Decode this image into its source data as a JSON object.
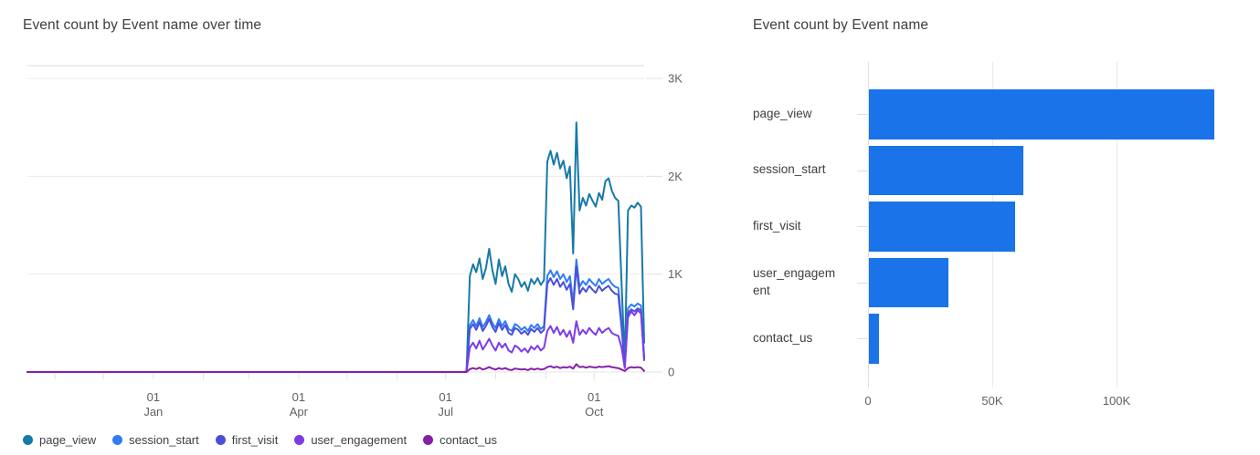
{
  "accent_colors": {
    "bar_blue": "#1a73e8",
    "grid_light": "#e9e9e9",
    "grid_border": "#dadce0",
    "axis_text": "#616161",
    "title_text": "#3c4043"
  },
  "chart_data": [
    {
      "type": "line",
      "title": "Event count by Event name over time",
      "legend_position": "bottom-left",
      "grid": true,
      "x_domain_days": [
        0,
        382
      ],
      "x_axis": {
        "tick_labels": [
          {
            "day": 78,
            "top": "01",
            "bottom": "Jan"
          },
          {
            "day": 168,
            "top": "01",
            "bottom": "Apr"
          },
          {
            "day": 259,
            "top": "01",
            "bottom": "Jul"
          },
          {
            "day": 351,
            "top": "01",
            "bottom": "Oct"
          }
        ],
        "minor_tick_days": [
          17,
          47,
          78,
          109,
          137,
          168,
          198,
          229,
          259,
          290,
          321,
          351
        ]
      },
      "y_axis": {
        "side": "right",
        "ylim": [
          0,
          3130
        ],
        "ticks": [
          {
            "value": 3000,
            "label": "3K"
          },
          {
            "value": 2000,
            "label": "2K"
          },
          {
            "value": 1000,
            "label": "1K"
          },
          {
            "value": 0,
            "label": "0"
          }
        ]
      },
      "series_note": "values sampled every 2 days starting at start_day; value 0 from day 0 until data begins mid-July",
      "series": [
        {
          "name": "page_view",
          "color": "#1779a8",
          "start_day": 270,
          "day_step": 2,
          "values": [
            0,
            5,
            980,
            1100,
            1020,
            1160,
            950,
            1060,
            1260,
            1040,
            900,
            1150,
            980,
            1080,
            900,
            820,
            1000,
            950,
            870,
            920,
            830,
            950,
            900,
            960,
            890,
            940,
            2150,
            2260,
            2120,
            2240,
            2080,
            2160,
            1980,
            2100,
            1210,
            2550,
            1650,
            1780,
            1700,
            1820,
            1750,
            1690,
            1830,
            1760,
            1950,
            1980,
            1850,
            1780,
            1750,
            900,
            100,
            1650,
            1700,
            1680,
            1730,
            1690,
            300
          ]
        },
        {
          "name": "session_start",
          "color": "#2f7cf6",
          "start_day": 270,
          "day_step": 2,
          "values": [
            0,
            5,
            480,
            530,
            470,
            550,
            460,
            510,
            580,
            500,
            450,
            540,
            470,
            520,
            440,
            420,
            490,
            470,
            430,
            460,
            420,
            480,
            450,
            490,
            440,
            470,
            980,
            1040,
            970,
            1030,
            950,
            1000,
            920,
            980,
            700,
            1150,
            870,
            930,
            890,
            950,
            910,
            880,
            950,
            900,
            930,
            950,
            900,
            870,
            860,
            500,
            80,
            650,
            690,
            670,
            700,
            680,
            150
          ]
        },
        {
          "name": "first_visit",
          "color": "#4b4fd8",
          "start_day": 270,
          "day_step": 2,
          "values": [
            0,
            4,
            440,
            490,
            430,
            510,
            420,
            470,
            540,
            460,
            410,
            500,
            430,
            480,
            400,
            380,
            450,
            430,
            390,
            420,
            380,
            440,
            410,
            450,
            400,
            430,
            900,
            960,
            890,
            950,
            870,
            920,
            840,
            900,
            640,
            1080,
            800,
            860,
            820,
            880,
            840,
            810,
            880,
            830,
            860,
            880,
            830,
            800,
            790,
            450,
            70,
            600,
            640,
            620,
            650,
            630,
            130
          ]
        },
        {
          "name": "user_engagement",
          "color": "#7d3be8",
          "start_day": 270,
          "day_step": 2,
          "values": [
            0,
            3,
            250,
            300,
            240,
            320,
            230,
            280,
            340,
            270,
            220,
            300,
            250,
            290,
            220,
            200,
            270,
            250,
            210,
            240,
            200,
            260,
            230,
            270,
            220,
            250,
            420,
            470,
            400,
            460,
            380,
            430,
            360,
            420,
            300,
            520,
            380,
            430,
            390,
            450,
            410,
            380,
            450,
            400,
            430,
            450,
            400,
            380,
            370,
            250,
            40,
            560,
            620,
            580,
            630,
            600,
            120
          ]
        },
        {
          "name": "contact_us",
          "color": "#861fa8",
          "start_day": 270,
          "day_step": 2,
          "values": [
            0,
            0,
            30,
            40,
            30,
            45,
            25,
            35,
            50,
            35,
            25,
            40,
            30,
            40,
            25,
            20,
            35,
            30,
            25,
            30,
            20,
            35,
            25,
            35,
            25,
            30,
            50,
            60,
            45,
            55,
            40,
            50,
            45,
            55,
            35,
            80,
            50,
            55,
            45,
            55,
            50,
            45,
            55,
            50,
            55,
            60,
            50,
            45,
            40,
            25,
            10,
            40,
            50,
            45,
            50,
            45,
            10
          ]
        }
      ]
    },
    {
      "type": "bar",
      "orientation": "horizontal",
      "title": "Event count by Event name",
      "grid": true,
      "bar_color": "#1a73e8",
      "categories": [
        "page_view",
        "session_start",
        "first_visit",
        "user_engagement",
        "contact_us"
      ],
      "values": [
        139000,
        62000,
        59000,
        32000,
        4000
      ],
      "xlim": [
        0,
        151000
      ],
      "x_ticks": [
        {
          "value": 0,
          "label": "0"
        },
        {
          "value": 50000,
          "label": "50K"
        },
        {
          "value": 100000,
          "label": "100K"
        }
      ]
    }
  ]
}
